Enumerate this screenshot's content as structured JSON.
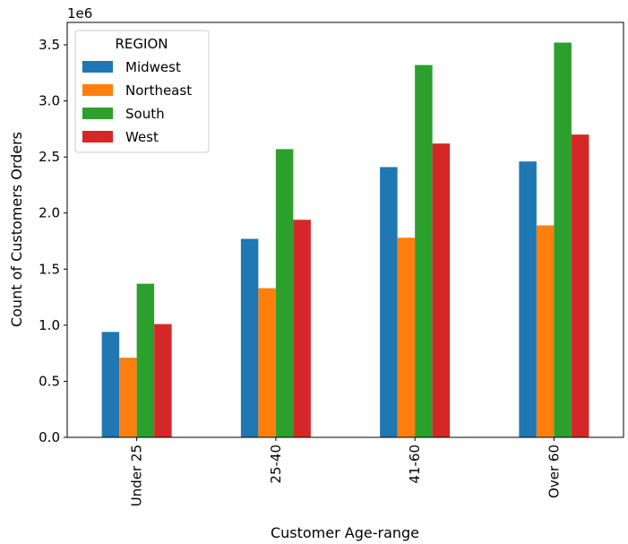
{
  "chart_data": {
    "type": "bar",
    "title": "",
    "xlabel": "Customer Age-range",
    "ylabel": "Count of Customers Orders",
    "y_offset_text": "1e6",
    "categories": [
      "Under 25",
      "25-40",
      "41-60",
      "Over 60"
    ],
    "ylim": [
      0,
      3.7
    ],
    "y_ticks": [
      0,
      0.5,
      1.0,
      1.5,
      2.0,
      2.5,
      3.0,
      3.5
    ],
    "y_tick_labels": [
      "0.0",
      "0.5",
      "1.0",
      "1.5",
      "2.0",
      "2.5",
      "3.0",
      "3.5"
    ],
    "y_scale_multiplier": 1000000,
    "grid": false,
    "x_tick_rotation": "vertical",
    "legend": {
      "title": "REGION",
      "position": "top-left"
    },
    "series": [
      {
        "name": "Midwest",
        "color": "#1f77b4",
        "values": [
          0.94,
          1.77,
          2.41,
          2.46
        ]
      },
      {
        "name": "Northeast",
        "color": "#ff7f0e",
        "values": [
          0.71,
          1.33,
          1.78,
          1.89
        ]
      },
      {
        "name": "South",
        "color": "#2ca02c",
        "values": [
          1.37,
          2.57,
          3.32,
          3.52
        ]
      },
      {
        "name": "West",
        "color": "#d62728",
        "values": [
          1.01,
          1.94,
          2.62,
          2.7
        ]
      }
    ]
  }
}
